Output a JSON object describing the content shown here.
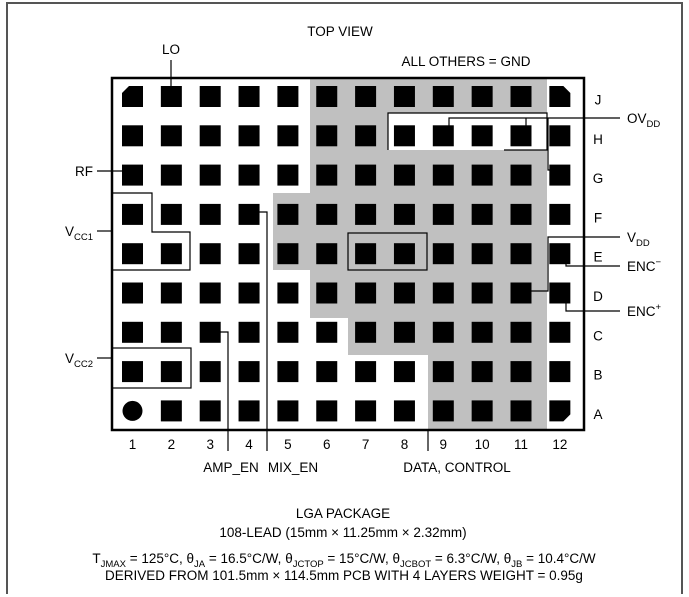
{
  "view_title": "TOP VIEW",
  "all_others_note": "ALL OTHERS = GND",
  "columns": [
    "1",
    "2",
    "3",
    "4",
    "5",
    "6",
    "7",
    "8",
    "9",
    "10",
    "11",
    "12"
  ],
  "rows": [
    "J",
    "H",
    "G",
    "F",
    "E",
    "D",
    "C",
    "B",
    "A"
  ],
  "pin_labels": {
    "lo": "LO",
    "rf": "RF",
    "vcc1_main": "V",
    "vcc1_sub": "CC1",
    "vcc2_main": "V",
    "vcc2_sub": "CC2",
    "amp_en": "AMP_EN",
    "mix_en": "MIX_EN",
    "data_control": "DATA, CONTROL",
    "ovdd_main": "OV",
    "ovdd_sub": "DD",
    "vdd_main": "V",
    "vdd_sub": "DD",
    "enc_minus_main": "ENC",
    "enc_minus_sup": "−",
    "enc_plus_main": "ENC",
    "enc_plus_sup": "+"
  },
  "package": {
    "name": "LGA PACKAGE",
    "leads": "108-LEAD (15mm × 11.25mm × 2.32mm)",
    "thermal": {
      "tj_main": "T",
      "tj_sub": "JMAX",
      "tj_val": " = 125°C, ",
      "ja_main": "θ",
      "ja_sub": "JA",
      "ja_val": " = 16.5°C/W, ",
      "jctop_main": "θ",
      "jctop_sub": "JCTOP",
      "jctop_val": " = 15°C/W, ",
      "jcbot_main": "θ",
      "jcbot_sub": "JCBOT",
      "jcbot_val": " = 6.3°C/W, ",
      "jb_main": "θ",
      "jb_sub": "JB",
      "jb_val": " = 10.4°C/W"
    },
    "derived": "DERIVED FROM 101.5mm × 114.5mm PCB WITH 4 LAYERS WEIGHT = 0.95g"
  },
  "colors": {
    "frame": "#555555",
    "shade": "#c0c0c0",
    "pad": "#000000"
  }
}
